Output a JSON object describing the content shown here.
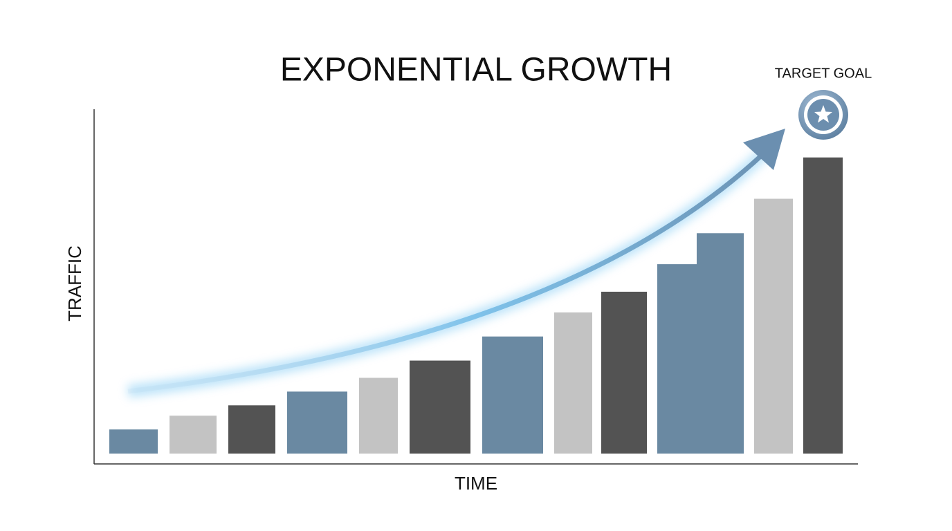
{
  "chart_data": {
    "type": "bar",
    "title": "EXPONENTIAL GROWTH",
    "y_label": "TRAFFIC",
    "x_label": "TIME",
    "annotation": "TARGET GOAL",
    "categories": [
      null,
      null,
      null,
      null,
      null,
      null,
      null,
      null,
      null,
      null,
      null,
      null,
      null
    ],
    "values": [
      7,
      11,
      14,
      18,
      22,
      27,
      34,
      41,
      47,
      55,
      64,
      74,
      86
    ],
    "colors": [
      "#6a89a2",
      "#c3c3c3",
      "#535353",
      "#6a89a2",
      "#c3c3c3",
      "#535353",
      "#6a89a2",
      "#c3c3c3",
      "#535353",
      "#6a89a2",
      "#6a89a2",
      "#c3c3c3",
      "#535353"
    ],
    "ylim": [
      0,
      100
    ]
  }
}
